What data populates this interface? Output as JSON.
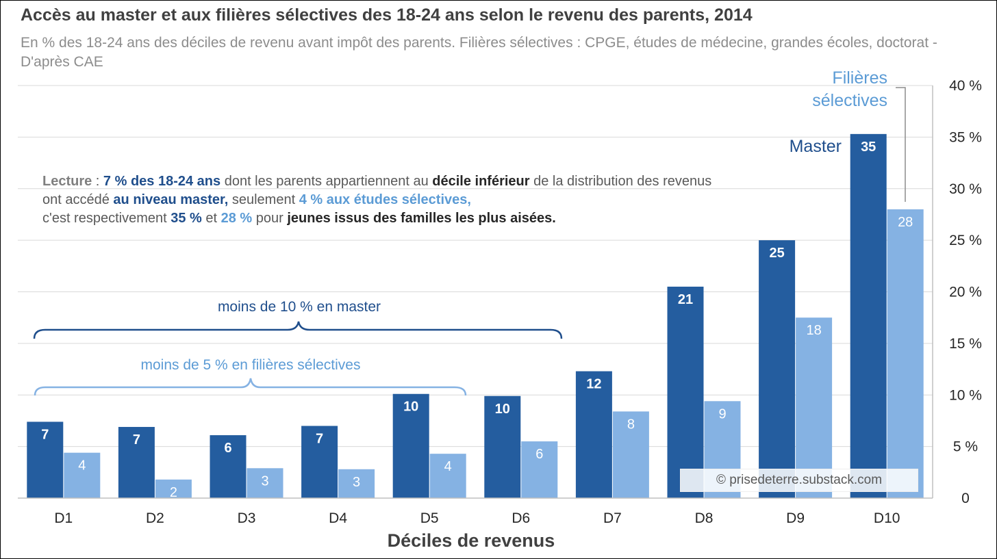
{
  "title": "Accès au master et aux filières sélectives des 18-24 ans selon le revenu des parents, 2014",
  "subtitle": "En % des 18-24 ans des déciles de revenu avant impôt des parents. Filières sélectives : CPGE, études de médecine, grandes écoles, doctorat - D'après CAE",
  "lecture": {
    "p1": "Lecture",
    "p2": " : ",
    "p3": "7 % des 18-24 ans",
    "p4": " dont les parents appartiennent au ",
    "p5": "décile inférieur",
    "p6": " de la distribution des revenus ont accédé ",
    "p7": "au niveau master,",
    "p8": " seulement ",
    "p9": "4 % aux études sélectives,",
    "p10": " c'est respectivement ",
    "p11": "35 %",
    "p12": " et ",
    "p13": "28 %",
    "p14": " pour ",
    "p15": "jeunes issus des familles les plus aisées."
  },
  "annotations": {
    "master_brace": "moins de 10 % en master",
    "selective_brace": "moins de 5 % en filières sélectives"
  },
  "credit": "© prisedeterre.substack.com",
  "colors": {
    "master": "#245d9f",
    "selective": "#85b2e3",
    "master_text": "#1f4e8c",
    "selective_text": "#5b9bd5"
  },
  "chart_data": {
    "type": "bar",
    "categories": [
      "D1",
      "D2",
      "D3",
      "D4",
      "D5",
      "D6",
      "D7",
      "D8",
      "D9",
      "D10"
    ],
    "series": [
      {
        "name": "Master",
        "values": [
          7.4,
          6.9,
          6.1,
          7.0,
          10.1,
          9.9,
          12.3,
          20.5,
          25.0,
          35.3
        ],
        "labels": [
          "7",
          "7",
          "6",
          "7",
          "10",
          "10",
          "12",
          "21",
          "25",
          "35"
        ]
      },
      {
        "name": "Filières sélectives",
        "values": [
          4.4,
          1.8,
          2.9,
          2.8,
          4.3,
          5.5,
          8.4,
          9.4,
          17.5,
          28.0
        ],
        "labels": [
          "4",
          "2",
          "3",
          "3",
          "4",
          "6",
          "8",
          "9",
          "18",
          "28"
        ]
      }
    ],
    "xlabel": "Déciles de revenus",
    "ylabel": "",
    "ylim": [
      0,
      40
    ],
    "yticks": [
      0,
      5,
      10,
      15,
      20,
      25,
      30,
      35,
      40
    ],
    "ytick_labels": [
      "0",
      "5 %",
      "10 %",
      "15 %",
      "20 %",
      "25 %",
      "30 %",
      "35 %",
      "40 %"
    ],
    "y_axis_side": "right",
    "grid": true,
    "legend": "labels next to D10 bars"
  }
}
